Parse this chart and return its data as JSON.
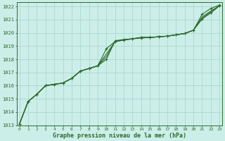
{
  "bg_color": "#cceee8",
  "grid_color": "#aad8d0",
  "line_color": "#2d6a2d",
  "xlabel": "Graphe pression niveau de la mer (hPa)",
  "xlim": [
    -0.3,
    23.3
  ],
  "ylim": [
    1013.0,
    1022.3
  ],
  "yticks": [
    1013,
    1014,
    1015,
    1016,
    1017,
    1018,
    1019,
    1020,
    1021,
    1022
  ],
  "xticks": [
    0,
    1,
    2,
    3,
    4,
    5,
    6,
    7,
    8,
    9,
    10,
    11,
    12,
    13,
    14,
    15,
    16,
    17,
    18,
    19,
    20,
    21,
    22,
    23
  ],
  "series": [
    {
      "x": [
        0,
        1,
        2,
        3,
        4,
        5,
        6,
        7,
        8,
        9,
        10,
        11,
        12,
        13,
        14,
        15,
        16,
        17,
        18,
        19,
        20,
        21,
        22,
        23
      ],
      "y": [
        1013.1,
        1014.8,
        1015.35,
        1016.0,
        1016.1,
        1016.2,
        1016.55,
        1017.1,
        1017.3,
        1017.5,
        1018.0,
        1019.4,
        1019.5,
        1019.55,
        1019.6,
        1019.65,
        1019.7,
        1019.75,
        1019.85,
        1019.95,
        1020.2,
        1021.05,
        1021.5,
        1022.05
      ],
      "has_markers": true
    },
    {
      "x": [
        0,
        1,
        2,
        3,
        4,
        5,
        6,
        7,
        8,
        9,
        10,
        11,
        12,
        13,
        14,
        15,
        16,
        17,
        18,
        19,
        20,
        21,
        22,
        23
      ],
      "y": [
        1013.1,
        1014.8,
        1015.35,
        1016.0,
        1016.1,
        1016.2,
        1016.55,
        1017.1,
        1017.3,
        1017.5,
        1018.8,
        1019.35,
        1019.45,
        1019.55,
        1019.65,
        1019.65,
        1019.7,
        1019.75,
        1019.85,
        1019.95,
        1020.2,
        1021.4,
        1021.85,
        1022.1
      ],
      "has_markers": true
    },
    {
      "x": [
        0,
        1,
        2,
        3,
        4,
        5,
        6,
        7,
        8,
        9,
        10,
        11,
        12,
        13,
        14,
        15,
        16,
        17,
        18,
        19,
        20,
        21,
        22,
        23
      ],
      "y": [
        1013.1,
        1014.8,
        1015.35,
        1016.0,
        1016.1,
        1016.2,
        1016.55,
        1017.1,
        1017.3,
        1017.5,
        1018.4,
        1019.35,
        1019.45,
        1019.55,
        1019.65,
        1019.65,
        1019.7,
        1019.75,
        1019.85,
        1019.95,
        1020.2,
        1021.2,
        1021.65,
        1022.05
      ],
      "has_markers": false
    },
    {
      "x": [
        0,
        1,
        2,
        3,
        4,
        5,
        6,
        7,
        8,
        9,
        10,
        11,
        12,
        13,
        14,
        15,
        16,
        17,
        18,
        19,
        20,
        21,
        22,
        23
      ],
      "y": [
        1013.1,
        1014.8,
        1015.35,
        1016.0,
        1016.1,
        1016.2,
        1016.55,
        1017.1,
        1017.3,
        1017.5,
        1018.2,
        1019.35,
        1019.45,
        1019.55,
        1019.65,
        1019.65,
        1019.7,
        1019.75,
        1019.85,
        1019.95,
        1020.2,
        1021.1,
        1021.6,
        1022.05
      ],
      "has_markers": false
    }
  ]
}
